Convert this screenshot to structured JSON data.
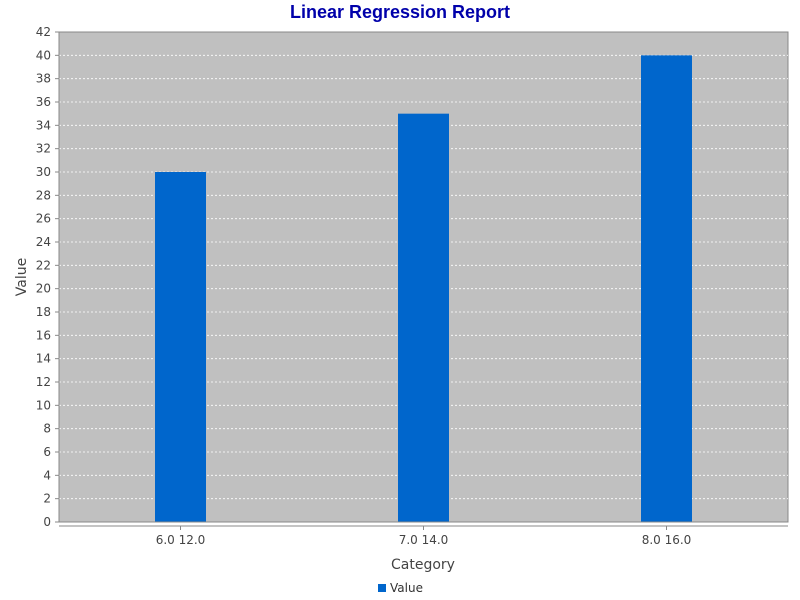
{
  "chart_data": {
    "type": "bar",
    "title": "Linear Regression Report",
    "xlabel": "Category",
    "ylabel": "Value",
    "categories": [
      "6.0 12.0",
      "7.0 14.0",
      "8.0 16.0"
    ],
    "series": [
      {
        "name": "Value",
        "values": [
          30,
          35,
          40
        ],
        "color": "#0066cc"
      }
    ],
    "ylim": [
      0,
      42
    ],
    "y_ticks": [
      0,
      2,
      4,
      6,
      8,
      10,
      12,
      14,
      16,
      18,
      20,
      22,
      24,
      26,
      28,
      30,
      32,
      34,
      36,
      38,
      40,
      42
    ],
    "grid": true,
    "legend_position": "bottom-center"
  },
  "colors": {
    "title": "#0000aa",
    "plot_background": "#c0c0c0",
    "gridline": "#ffffff",
    "axis": "#888888",
    "bar": "#0066cc"
  }
}
